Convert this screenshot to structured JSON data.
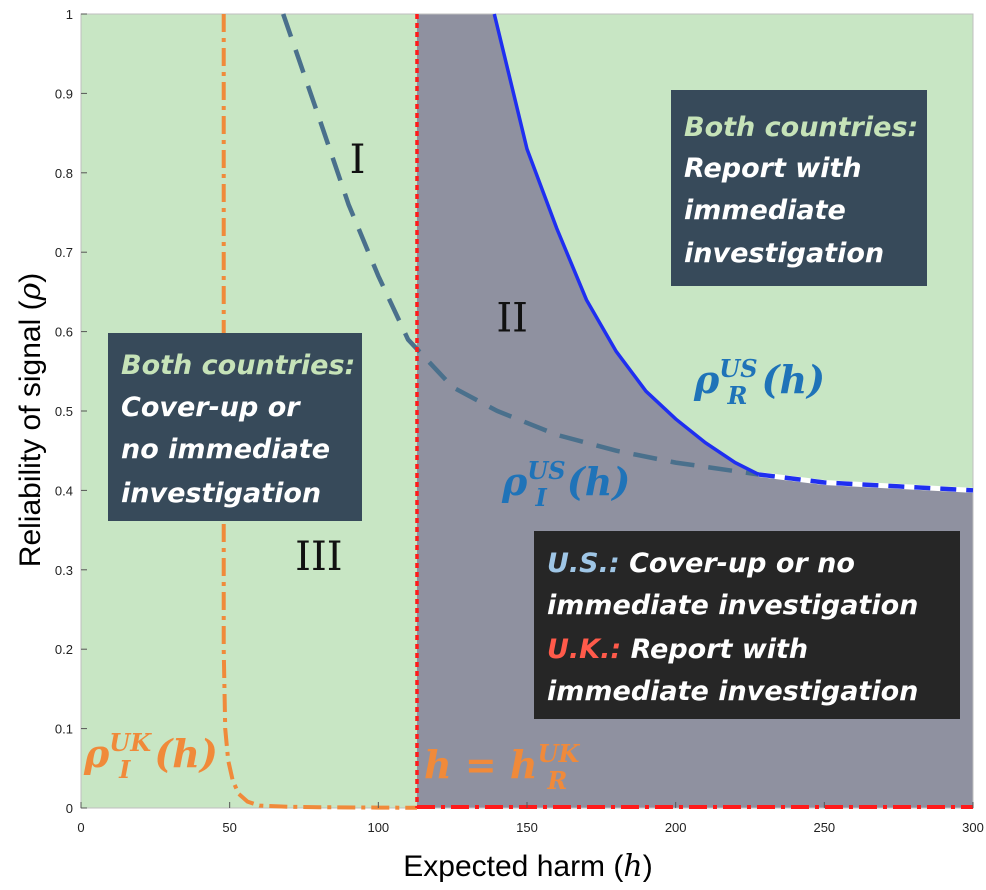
{
  "chart_data": {
    "type": "region-plot",
    "xlabel_main": "Expected harm",
    "xlabel_var": "h",
    "ylabel_main": "Reliability of signal",
    "ylabel_var": "ρ",
    "xlim": [
      0,
      300
    ],
    "ylim": [
      0,
      1
    ],
    "x_ticks": [
      "0",
      "50",
      "100",
      "150",
      "200",
      "250",
      "300"
    ],
    "y_ticks": [
      "0",
      "0.1",
      "0.2",
      "0.3",
      "0.4",
      "0.5",
      "0.6",
      "0.7",
      "0.8",
      "0.9",
      "1"
    ],
    "colors": {
      "green_region": "#c8e6c4",
      "gray_region": "#8f91a0",
      "rho_R_US": "#1f2ff0",
      "rho_I_US": "#1e4f8c",
      "rho_I_UK": "#f08a3a",
      "h_R_UK": "#ff1a1a",
      "box_dark": "#374a5a",
      "box_black": "#262626",
      "box_highlight": "#c6e3b8",
      "us_label": "#9fc6e6",
      "uk_label": "#ff5a4a"
    },
    "regions": [
      {
        "label": "I",
        "x": 93,
        "y": 0.8
      },
      {
        "label": "II",
        "x": 145,
        "y": 0.6
      },
      {
        "label": "III",
        "x": 80,
        "y": 0.3
      }
    ],
    "curves": {
      "rho_R_US": {
        "label_base": "ρ",
        "label_sup": "US",
        "label_sub": "R",
        "label_arg": "(h)",
        "x": [
          139,
          150,
          160,
          170,
          180,
          190,
          200,
          210,
          220,
          228
        ],
        "y": [
          1.0,
          0.83,
          0.73,
          0.64,
          0.575,
          0.525,
          0.49,
          0.46,
          0.435,
          0.42
        ]
      },
      "rho_I_US": {
        "label_base": "ρ",
        "label_sup": "US",
        "label_sub": "I",
        "label_arg": "(h)",
        "x": [
          68,
          80,
          90,
          100,
          110,
          125,
          140,
          160,
          180,
          200,
          228,
          250,
          275,
          300
        ],
        "y": [
          1.0,
          0.87,
          0.76,
          0.67,
          0.59,
          0.53,
          0.5,
          0.47,
          0.45,
          0.435,
          0.42,
          0.41,
          0.405,
          0.4
        ]
      },
      "rho_I_UK": {
        "label_base": "ρ",
        "label_sup": "UK",
        "label_sub": "I",
        "label_arg": "(h)",
        "x": [
          48,
          48,
          48.5,
          49.5,
          51,
          53,
          56,
          60,
          70,
          80,
          100,
          113
        ],
        "y": [
          1.0,
          0.2,
          0.1,
          0.06,
          0.035,
          0.018,
          0.008,
          0.003,
          0.0015,
          0.001,
          0.0005,
          0.0003
        ]
      },
      "h_R_UK": {
        "label_left": "h = h",
        "label_sup": "UK",
        "label_sub": "R",
        "x": 113
      }
    },
    "boxes": {
      "top_right": {
        "highlight": "Both countries:",
        "lines": [
          "Report with",
          "immediate",
          "investigation"
        ]
      },
      "left": {
        "highlight": "Both countries:",
        "lines": [
          "Cover-up or",
          "no immediate",
          "investigation"
        ]
      },
      "bottom_right": {
        "us_label": "U.S.:",
        "us_text_1": " Cover-up or no",
        "us_text_2": "immediate investigation",
        "uk_label": "U.K.:",
        "uk_text_1": " Report with",
        "uk_text_2": "immediate investigation"
      }
    }
  }
}
